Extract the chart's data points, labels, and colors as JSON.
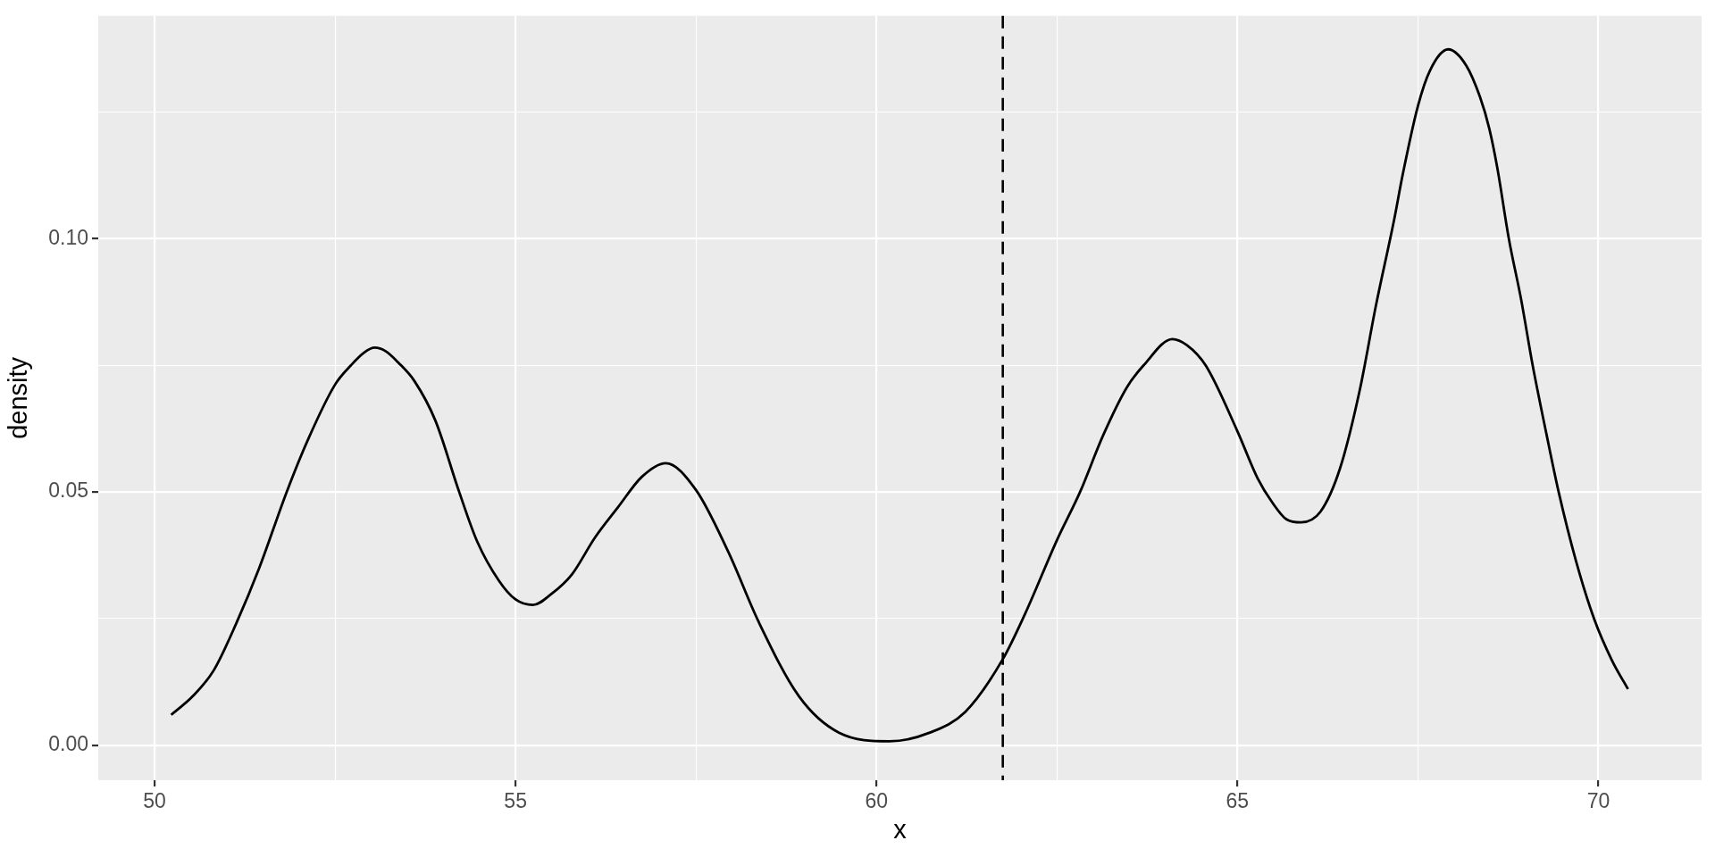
{
  "chart_data": {
    "type": "line",
    "xlabel": "x",
    "ylabel": "density",
    "x": [
      50.23,
      50.53,
      50.82,
      51.13,
      51.45,
      51.83,
      52.13,
      52.5,
      52.72,
      52.9,
      53.05,
      53.2,
      53.38,
      53.6,
      53.89,
      54.22,
      54.47,
      54.77,
      55.0,
      55.24,
      55.5,
      55.78,
      56.1,
      56.42,
      56.75,
      57.08,
      57.5,
      57.95,
      58.37,
      58.93,
      59.48,
      60.18,
      60.74,
      61.23,
      61.75,
      62.06,
      62.5,
      62.82,
      63.14,
      63.47,
      63.7,
      64.1,
      64.3,
      64.56,
      65.0,
      65.28,
      65.48,
      65.68,
      65.88,
      66.15,
      66.42,
      66.69,
      66.92,
      67.17,
      67.29,
      67.5,
      67.67,
      67.92,
      68.17,
      68.36,
      68.49,
      68.6,
      68.76,
      68.93,
      69.09,
      69.28,
      69.45,
      69.69,
      69.94,
      70.19,
      70.41
    ],
    "series": [
      {
        "color": "#000000",
        "values": [
          0.006,
          0.0097,
          0.0148,
          0.024,
          0.035,
          0.05,
          0.0605,
          0.0712,
          0.075,
          0.0775,
          0.0785,
          0.0778,
          0.0755,
          0.0719,
          0.0641,
          0.05,
          0.0402,
          0.0325,
          0.0288,
          0.0277,
          0.0299,
          0.0337,
          0.041,
          0.047,
          0.053,
          0.0557,
          0.0504,
          0.0381,
          0.0243,
          0.0096,
          0.0025,
          0.0008,
          0.0025,
          0.0066,
          0.017,
          0.026,
          0.0405,
          0.05,
          0.0612,
          0.0707,
          0.075,
          0.0802,
          0.079,
          0.075,
          0.062,
          0.0527,
          0.048,
          0.0446,
          0.044,
          0.0461,
          0.0546,
          0.0698,
          0.0869,
          0.1037,
          0.1127,
          0.1262,
          0.1333,
          0.1374,
          0.1342,
          0.128,
          0.1217,
          0.114,
          0.1,
          0.088,
          0.075,
          0.0615,
          0.05,
          0.0364,
          0.025,
          0.0167,
          0.0111
        ]
      }
    ],
    "xlim": [
      49.22,
      71.43
    ],
    "ylim": [
      -0.0069,
      0.144
    ],
    "xticks": [
      50,
      {
        "value": 52.5,
        "label": null
      },
      55,
      {
        "value": 57.5,
        "label": null
      },
      60,
      {
        "value": 62.5,
        "label": null
      },
      65,
      {
        "value": 67.5,
        "label": null
      },
      70
    ],
    "yticks": [
      {
        "value": 0,
        "label": "0.00"
      },
      {
        "value": 0.025,
        "label": null
      },
      {
        "value": 0.05,
        "label": "0.05"
      },
      {
        "value": 0.075,
        "label": null
      },
      {
        "value": 0.1,
        "label": "0.10"
      },
      {
        "value": 0.125,
        "label": null
      }
    ],
    "grid": true,
    "legend": false,
    "marker": "none",
    "line_style": "solid",
    "ref_lines": [
      {
        "axis": "x",
        "value": 61.75,
        "line_style": "dashed",
        "color": "#000000"
      }
    ]
  }
}
